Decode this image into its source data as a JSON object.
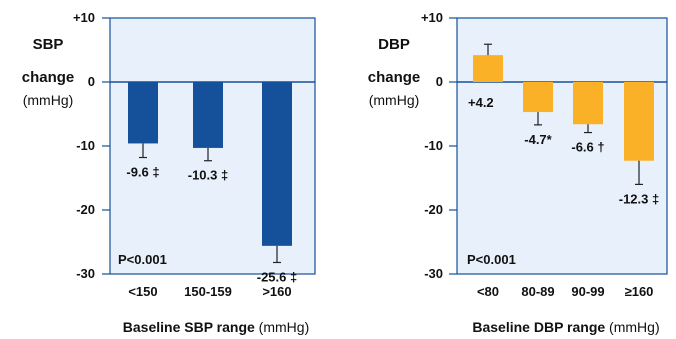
{
  "colors": {
    "sbp_bar": "#15509a",
    "dbp_bar": "#fbb127",
    "panel_bg": "#e8f1fb",
    "panel_border": "#15509a",
    "zero_line": "#15509a",
    "error_bar": "#222222"
  },
  "chart_data": [
    {
      "type": "bar",
      "ylabel_lines": [
        "SBP",
        "change"
      ],
      "ylabel_unit": "(mmHg)",
      "xlabel_bold": "Baseline SBP range",
      "xlabel_unit": " (mmHg)",
      "ylim": [
        -30,
        10
      ],
      "yticks": [
        10,
        0,
        -10,
        -20,
        -30
      ],
      "ytick_labels": [
        "+10",
        "0",
        "-10",
        "-20",
        "-30"
      ],
      "categories": [
        "<150",
        "150-159",
        ">160"
      ],
      "values": [
        -9.6,
        -10.3,
        -25.6
      ],
      "error": [
        2.2,
        2.0,
        2.6
      ],
      "value_labels": [
        "-9.6 ‡",
        "-10.3 ‡",
        "-25.6 ‡"
      ],
      "p_value": "P<0.001",
      "grid": false,
      "color": "#15509a"
    },
    {
      "type": "bar",
      "ylabel_lines": [
        "DBP",
        "change"
      ],
      "ylabel_unit": "(mmHg)",
      "xlabel_bold": "Baseline DBP range",
      "xlabel_unit": " (mmHg)",
      "ylim": [
        -30,
        10
      ],
      "yticks": [
        10,
        0,
        -10,
        -20,
        -30
      ],
      "ytick_labels": [
        "+10",
        "0",
        "-10",
        "-20",
        "-30"
      ],
      "categories": [
        "<80",
        "80-89",
        "90-99",
        "≥160"
      ],
      "values": [
        4.2,
        -4.7,
        -6.6,
        -12.3
      ],
      "error": [
        1.7,
        2.0,
        1.3,
        3.7
      ],
      "value_labels": [
        "+4.2",
        "-4.7*",
        "-6.6 †",
        "-12.3 ‡"
      ],
      "p_value": "P<0.001",
      "grid": false,
      "color": "#fbb127"
    }
  ]
}
